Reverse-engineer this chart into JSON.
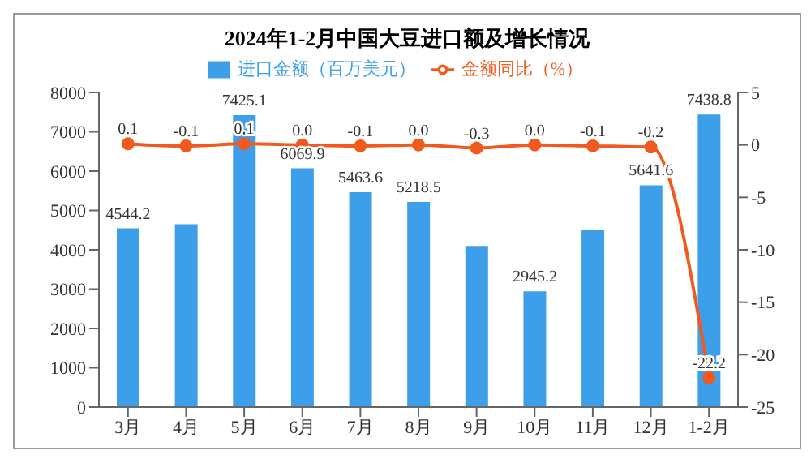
{
  "chart_data": {
    "type": "bar",
    "title": "2024年1-2月中国大豆进口额及增长情况",
    "categories": [
      "3月",
      "4月",
      "5月",
      "6月",
      "7月",
      "8月",
      "9月",
      "10月",
      "11月",
      "12月",
      "1-2月"
    ],
    "series": [
      {
        "name": "进口金额（百万美元）",
        "color": "#3d9ee9",
        "values": [
          4544.2,
          4650,
          7425.1,
          6069.9,
          5463.6,
          5218.5,
          4100,
          2945.2,
          4500,
          5641.6,
          7438.8
        ],
        "value_labels": [
          "4544.2",
          null,
          "7425.1",
          "6069.9",
          "5463.6",
          "5218.5",
          null,
          "2945.2",
          null,
          "5641.6",
          "7438.8"
        ]
      },
      {
        "name": "金额同比（%）",
        "type": "line",
        "axis": "y2",
        "color": "#f05a1e",
        "values": [
          0.1,
          -0.1,
          0.1,
          0.0,
          -0.1,
          0.0,
          -0.3,
          0.0,
          -0.1,
          -0.2,
          -22.2
        ],
        "value_labels": [
          "0.1",
          "-0.1",
          "0.1",
          "0.0",
          "-0.1",
          "0.0",
          "-0.3",
          "0.0",
          "-0.1",
          "-0.2",
          "-22.2"
        ]
      }
    ],
    "ylim": [
      0,
      8000
    ],
    "yticks": [
      0,
      1000,
      2000,
      3000,
      4000,
      5000,
      6000,
      7000,
      8000
    ],
    "y2lim": [
      -25,
      5
    ],
    "y2ticks": [
      -25,
      -20,
      -15,
      -10,
      -5,
      0,
      5
    ],
    "grid": false,
    "legend": "top",
    "marker": "circle"
  }
}
